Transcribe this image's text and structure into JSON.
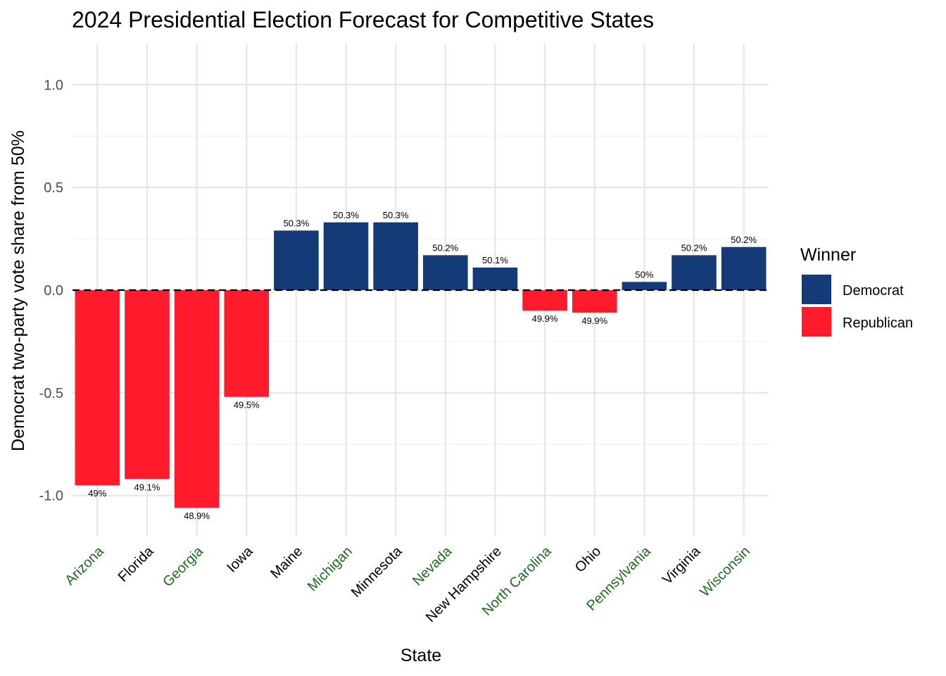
{
  "chart_data": {
    "type": "bar",
    "title": "2024 Presidential Election Forecast for Competitive States",
    "xlabel": "State",
    "ylabel": "Democrat two-party vote share from 50%",
    "ylim": [
      -1.2,
      1.2
    ],
    "yticks": [
      -1.0,
      -0.5,
      0.0,
      0.5,
      1.0
    ],
    "ytick_labels": [
      "-1.0",
      "-0.5",
      "0.0",
      "0.5",
      "1.0"
    ],
    "grid": true,
    "reference_line": {
      "y": 0,
      "style": "dashed"
    },
    "categories": [
      "Arizona",
      "Florida",
      "Georgia",
      "Iowa",
      "Maine",
      "Michigan",
      "Minnesota",
      "Nevada",
      "New Hampshire",
      "North Carolina",
      "Ohio",
      "Pennsylvania",
      "Virginia",
      "Wisconsin"
    ],
    "highlighted_categories": [
      "Arizona",
      "Georgia",
      "Michigan",
      "Nevada",
      "North Carolina",
      "Pennsylvania",
      "Wisconsin"
    ],
    "values": [
      -0.95,
      -0.92,
      -1.06,
      -0.52,
      0.29,
      0.33,
      0.33,
      0.17,
      0.11,
      -0.1,
      -0.11,
      0.04,
      0.17,
      0.21
    ],
    "labels": [
      "49%",
      "49.1%",
      "48.9%",
      "49.5%",
      "50.3%",
      "50.3%",
      "50.3%",
      "50.2%",
      "50.1%",
      "49.9%",
      "49.9%",
      "50%",
      "50.2%",
      "50.2%"
    ],
    "winners": [
      "Republican",
      "Republican",
      "Republican",
      "Republican",
      "Democrat",
      "Democrat",
      "Democrat",
      "Democrat",
      "Democrat",
      "Republican",
      "Republican",
      "Democrat",
      "Democrat",
      "Democrat"
    ],
    "legend": {
      "title": "Winner",
      "position": "right",
      "entries": [
        {
          "name": "Democrat",
          "color": "#143A78"
        },
        {
          "name": "Republican",
          "color": "#FF1A2C"
        }
      ]
    },
    "colors": {
      "highlight_tick": "#1E6B1E",
      "normal_tick": "#000000"
    }
  }
}
